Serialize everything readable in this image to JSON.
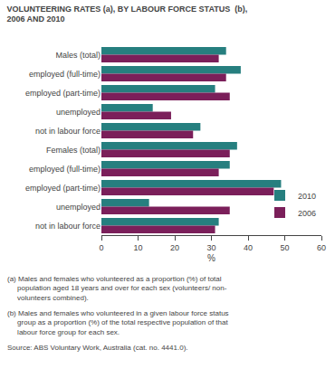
{
  "chart_data": {
    "type": "bar",
    "orientation": "horizontal",
    "title": "VOLUNTEERING RATES (a), BY LABOUR FORCE STATUS  (b),\n2006 AND 2010",
    "categories": [
      "Males (total)",
      "employed (full-time)",
      "employed (part-time)",
      "    unemployed",
      "not in labour force",
      "Females (total)",
      "employed (full-time)",
      "employed (part-time)",
      "    unemployed",
      "not in labour force"
    ],
    "series": [
      {
        "name": "2010",
        "color": "#267f7f",
        "values": [
          34,
          38,
          31,
          14,
          27,
          37,
          35,
          49,
          13,
          32
        ]
      },
      {
        "name": "2006",
        "color": "#7b1f5a",
        "values": [
          32,
          34,
          35,
          19,
          25,
          35,
          32,
          47,
          35,
          31
        ]
      }
    ],
    "xlabel": "%",
    "xlim": [
      0,
      60
    ],
    "xticks": [
      0,
      10,
      20,
      30,
      40,
      50,
      60
    ],
    "legend": "lower right",
    "grid": false,
    "annotations": [
      "(a) Males and females who volunteered as a proportion (%) of total\n     population aged 18 years and over for each sex (volunteers/ non-\n     volunteers combined).",
      "(b) Males and females who volunteered in a given labour force status\n     group as a proportion (%) of the total respective population of that\n     labour force group for each sex.",
      "Source: ABS Voluntary Work, Australia (cat. no. 4441.0)."
    ]
  }
}
